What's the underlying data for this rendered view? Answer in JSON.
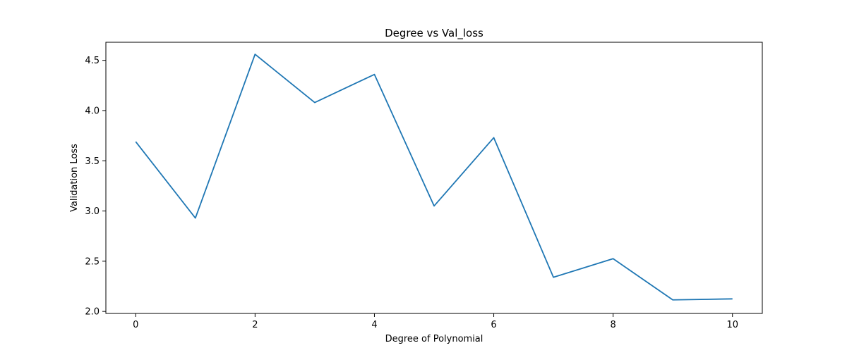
{
  "chart_data": {
    "type": "line",
    "title": "Degree vs Val_loss",
    "xlabel": "Degree of Polynomial",
    "ylabel": "Validation Loss",
    "x": [
      0,
      1,
      2,
      3,
      4,
      5,
      6,
      7,
      8,
      9,
      10
    ],
    "series": [
      {
        "values": [
          3.69,
          2.93,
          4.56,
          4.08,
          4.36,
          3.05,
          3.73,
          2.34,
          2.525,
          2.115,
          2.125
        ],
        "color": "#1f77b4"
      }
    ],
    "xlim": [
      -0.5,
      10.5
    ],
    "ylim": [
      1.98,
      4.68
    ],
    "xticks": [
      0,
      2,
      4,
      6,
      8,
      10
    ],
    "xtick_labels": [
      "0",
      "2",
      "4",
      "6",
      "8",
      "10"
    ],
    "yticks": [
      2.0,
      2.5,
      3.0,
      3.5,
      4.0,
      4.5
    ],
    "ytick_labels": [
      "2.0",
      "2.5",
      "3.0",
      "3.5",
      "4.0",
      "4.5"
    ],
    "grid": false,
    "legend": "none"
  }
}
